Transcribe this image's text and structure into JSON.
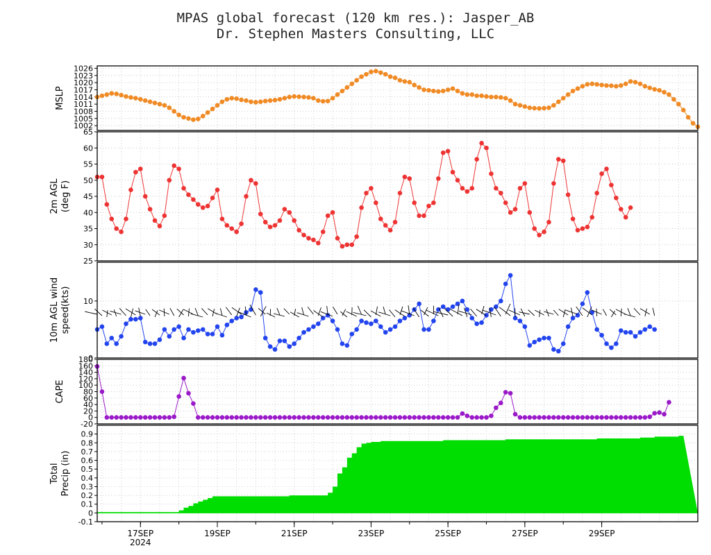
{
  "header": {
    "title_line1": "MPAS global forecast (120 km res.): Jasper_AB",
    "title_line2": "Dr. Stephen Masters Consulting, LLC"
  },
  "x_axis": {
    "date_labels": [
      "17SEP",
      "19SEP",
      "21SEP",
      "23SEP",
      "25SEP",
      "27SEP",
      "29SEP"
    ],
    "year_label": "2024"
  },
  "colors": {
    "mslp": "#f08a24",
    "temp": "#ee3333",
    "wind": "#2244ee",
    "cape": "#9a19c8",
    "precip": "#00dd00",
    "grid": "#aaaaaa"
  },
  "chart_data": [
    {
      "type": "line",
      "panel": "mslp",
      "ylabel": "MSLP",
      "ylim": [
        1000,
        1027
      ],
      "yticks": [
        "1002",
        "1005",
        "1008",
        "1011",
        "1014",
        "1017",
        "1020",
        "1023",
        "1026"
      ],
      "x_start": "2024-09-15T21Z",
      "x_step_hours": 3,
      "values": [
        1014,
        1014.5,
        1015,
        1015.5,
        1015.3,
        1014.8,
        1014.2,
        1013.8,
        1013.5,
        1013,
        1012.5,
        1012,
        1011.5,
        1011,
        1010.5,
        1009.5,
        1008,
        1006.5,
        1005.5,
        1005,
        1004.5,
        1004.8,
        1006,
        1007.5,
        1009,
        1010.5,
        1012,
        1013,
        1013.5,
        1013.3,
        1012.8,
        1012.5,
        1012,
        1011.8,
        1012,
        1012.3,
        1012.5,
        1012.7,
        1013,
        1013.5,
        1014,
        1014.2,
        1014.1,
        1014,
        1013.8,
        1013.5,
        1012.5,
        1012.2,
        1012.3,
        1013.5,
        1015,
        1016.5,
        1018,
        1019.5,
        1021,
        1022.5,
        1023.5,
        1024.5,
        1024.8,
        1024.2,
        1023.5,
        1022.5,
        1022,
        1021,
        1020.5,
        1020.2,
        1019,
        1018,
        1017,
        1016.8,
        1016.5,
        1016.3,
        1016.5,
        1017,
        1017.5,
        1016.5,
        1015.5,
        1015,
        1015,
        1014.5,
        1014.5,
        1014.2,
        1014,
        1014,
        1013.8,
        1013.5,
        1012.5,
        1011,
        1010.5,
        1010,
        1009.5,
        1009.3,
        1009.2,
        1009.3,
        1009.5,
        1010.5,
        1012,
        1013.5,
        1015,
        1016.5,
        1017.5,
        1018.5,
        1019.3,
        1019.5,
        1019.3,
        1019,
        1018.8,
        1018.7,
        1018.5,
        1018.8,
        1019.5,
        1020.5,
        1020.2,
        1019.5,
        1018.5,
        1017.8,
        1017.2,
        1016.8,
        1016,
        1015,
        1013,
        1011,
        1008.5,
        1005.5,
        1003,
        1001.5
      ]
    },
    {
      "type": "line",
      "panel": "temperature",
      "ylabel": "2m AGL (deg F)",
      "ylim": [
        25,
        65
      ],
      "yticks": [
        "25",
        "30",
        "35",
        "40",
        "45",
        "50",
        "55",
        "60",
        "65"
      ],
      "x_start": "2024-09-15T21Z",
      "x_step_hours": 3,
      "values": [
        51,
        51,
        42.5,
        38,
        35,
        34,
        38,
        47,
        52.5,
        53.5,
        45,
        41,
        37.5,
        35.8,
        39,
        50,
        54.5,
        53.5,
        47.5,
        45.5,
        44,
        42.5,
        41.5,
        42,
        44.5,
        47,
        38,
        36,
        35,
        34,
        36.5,
        45,
        50,
        49,
        39.5,
        37,
        35.5,
        36,
        37.5,
        41,
        40,
        37.5,
        34.5,
        33,
        32,
        31.5,
        30.5,
        34,
        39,
        40,
        32,
        29.5,
        30,
        30,
        32.5,
        41.5,
        46,
        47.5,
        43,
        38,
        36,
        34.5,
        37,
        46,
        51,
        50.5,
        43,
        39,
        39,
        42,
        43,
        50.5,
        58.5,
        59,
        52.5,
        50,
        47.5,
        46.5,
        47.5,
        56.5,
        61.5,
        60,
        52,
        47.5,
        46,
        43,
        40,
        41,
        47.5,
        49,
        40,
        35,
        33,
        34,
        37,
        49,
        56.5,
        56,
        45.5,
        38,
        34.5,
        35,
        35.5,
        38.5,
        46,
        52,
        53.5,
        48.5,
        44.5,
        41,
        38.5,
        41.5
      ]
    },
    {
      "type": "line",
      "panel": "wind",
      "ylabel": "10m AGL wind speed(kts)",
      "ylim": [
        0,
        16.8
      ],
      "yticks": [
        "0",
        "10"
      ],
      "x_start": "2024-09-15T21Z",
      "x_step_hours": 3,
      "values": [
        5,
        5.5,
        2.5,
        3.5,
        2.5,
        3.8,
        6,
        6.8,
        6.8,
        7,
        2.8,
        2.5,
        2.5,
        3.2,
        5,
        3.8,
        5,
        5.5,
        3.5,
        5,
        4.5,
        4.8,
        5,
        4.2,
        4.2,
        5.5,
        4,
        5.8,
        6.5,
        7,
        7.2,
        8,
        8.5,
        12,
        11.5,
        3.5,
        2,
        1.5,
        3,
        3,
        2,
        2.5,
        3.5,
        4.5,
        5,
        5.5,
        6,
        7,
        7.5,
        6.5,
        5,
        2.5,
        2.2,
        4.2,
        5,
        6.5,
        6.2,
        6,
        6.5,
        5.5,
        4.5,
        5,
        5.5,
        6.5,
        7,
        7.5,
        8.5,
        9.5,
        5,
        5,
        6.5,
        8.5,
        9,
        8.5,
        9,
        9.5,
        10,
        8.5,
        7,
        6,
        6.2,
        7.5,
        8.5,
        9,
        10,
        13,
        14.5,
        7,
        6.5,
        5.5,
        2.2,
        2.8,
        3.2,
        3.5,
        3.5,
        1.5,
        1.2,
        2.5,
        5.5,
        7,
        7.5,
        9.5,
        11.5,
        8,
        5,
        4,
        2.5,
        1.8,
        2.5,
        4.8,
        4.5,
        4.5,
        3.8,
        4.5,
        5,
        5.5,
        5
      ]
    },
    {
      "type": "line",
      "panel": "cape",
      "ylabel": "CAPE",
      "ylim": [
        -20,
        180
      ],
      "yticks": [
        "-20",
        "0",
        "20",
        "40",
        "60",
        "80",
        "100",
        "120",
        "140",
        "160",
        "180"
      ],
      "x_start": "2024-09-15T21Z",
      "x_step_hours": 3,
      "values": [
        158,
        80,
        0,
        0,
        0,
        0,
        0,
        0,
        0,
        0,
        0,
        0,
        0,
        0,
        0,
        0,
        2,
        65,
        122,
        75,
        43,
        0,
        0,
        0,
        0,
        0,
        0,
        0,
        0,
        0,
        0,
        0,
        0,
        0,
        0,
        0,
        0,
        0,
        0,
        0,
        0,
        0,
        0,
        0,
        0,
        0,
        0,
        0,
        0,
        0,
        0,
        0,
        0,
        0,
        0,
        0,
        0,
        0,
        0,
        0,
        0,
        0,
        0,
        0,
        0,
        0,
        0,
        0,
        0,
        0,
        0,
        0,
        0,
        0,
        0,
        0,
        12,
        5,
        0,
        0,
        0,
        0,
        5,
        30,
        45,
        78,
        75,
        10,
        0,
        0,
        0,
        0,
        0,
        0,
        0,
        0,
        0,
        0,
        0,
        0,
        0,
        0,
        0,
        0,
        0,
        0,
        0,
        0,
        0,
        0,
        0,
        0,
        0,
        0,
        0,
        2,
        13,
        15,
        10,
        47
      ]
    },
    {
      "type": "area",
      "panel": "precip",
      "ylabel": "Total Precip (in)",
      "ylim": [
        -0.1,
        1.0
      ],
      "yticks": [
        "-0.1",
        "0",
        "0.1",
        "0.2",
        "0.3",
        "0.4",
        "0.5",
        "0.6",
        "0.7",
        "0.8",
        "0.9"
      ],
      "x_start": "2024-09-15T21Z",
      "x_step_hours": 3,
      "values": [
        0.01,
        0.01,
        0.01,
        0.01,
        0.01,
        0.01,
        0.01,
        0.01,
        0.01,
        0.01,
        0.01,
        0.01,
        0.01,
        0.01,
        0.01,
        0.01,
        0.01,
        0.03,
        0.06,
        0.08,
        0.11,
        0.13,
        0.15,
        0.17,
        0.19,
        0.19,
        0.19,
        0.19,
        0.19,
        0.19,
        0.19,
        0.19,
        0.19,
        0.19,
        0.19,
        0.19,
        0.19,
        0.19,
        0.19,
        0.19,
        0.2,
        0.2,
        0.2,
        0.2,
        0.2,
        0.2,
        0.2,
        0.2,
        0.23,
        0.3,
        0.45,
        0.52,
        0.63,
        0.68,
        0.75,
        0.79,
        0.8,
        0.81,
        0.81,
        0.82,
        0.82,
        0.82,
        0.82,
        0.82,
        0.82,
        0.82,
        0.82,
        0.82,
        0.82,
        0.82,
        0.82,
        0.82,
        0.83,
        0.83,
        0.83,
        0.83,
        0.83,
        0.83,
        0.83,
        0.83,
        0.83,
        0.83,
        0.83,
        0.83,
        0.83,
        0.84,
        0.84,
        0.84,
        0.84,
        0.84,
        0.84,
        0.84,
        0.84,
        0.84,
        0.84,
        0.84,
        0.84,
        0.84,
        0.84,
        0.84,
        0.84,
        0.84,
        0.84,
        0.84,
        0.85,
        0.85,
        0.85,
        0.85,
        0.85,
        0.85,
        0.85,
        0.85,
        0.85,
        0.86,
        0.86,
        0.86,
        0.87,
        0.87,
        0.87,
        0.87,
        0.87,
        0.88
      ]
    }
  ]
}
